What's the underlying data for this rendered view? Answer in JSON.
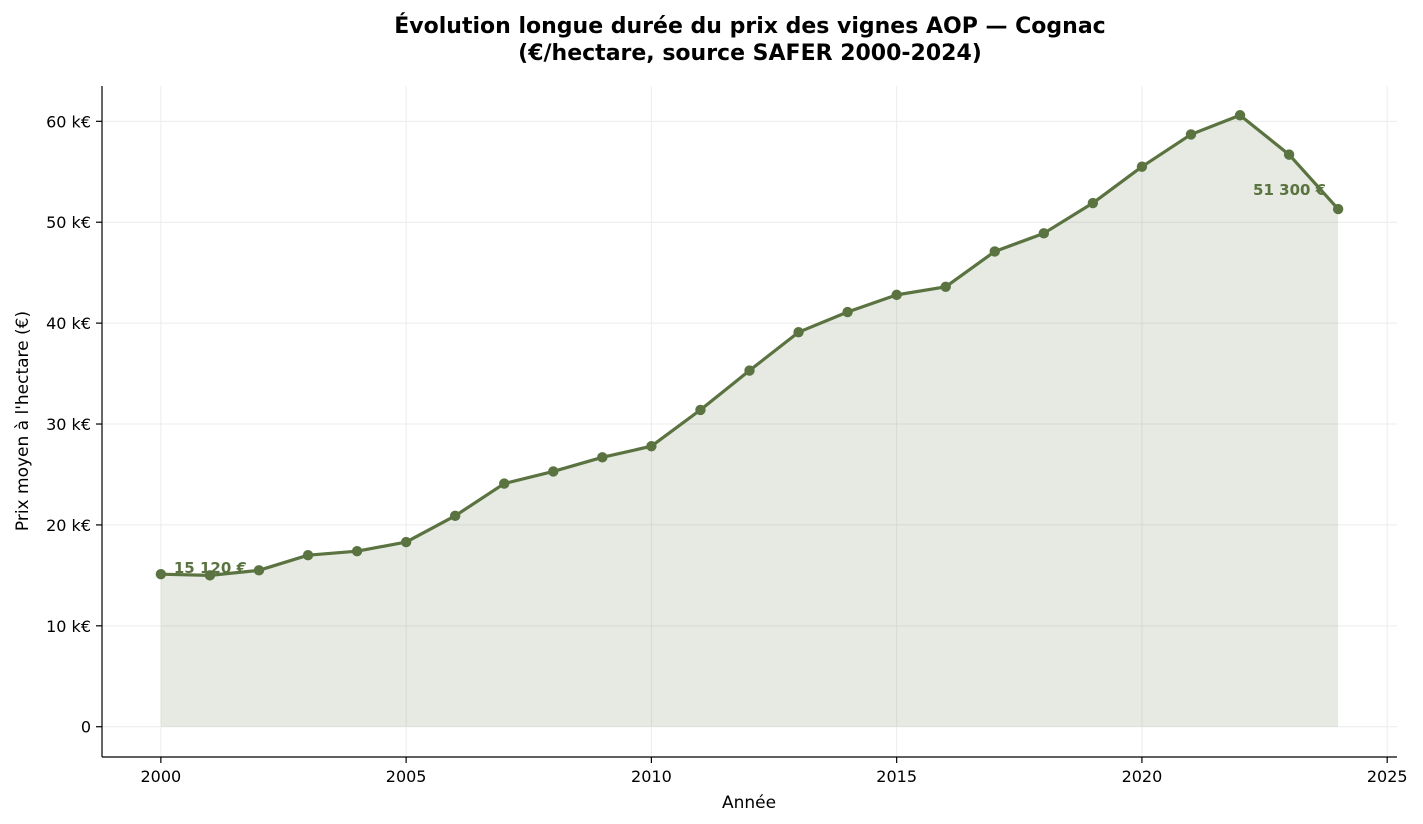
{
  "chart_data": {
    "type": "area",
    "title_line1": "Évolution longue durée du prix des vignes AOP — Cognac",
    "title_line2": "(€/hectare, source SAFER 2000-2024)",
    "xlabel": "Année",
    "ylabel": "Prix moyen à l'hectare (€)",
    "xlim": [
      1998.8,
      2025.2
    ],
    "ylim": [
      -3000,
      63500
    ],
    "x_ticks": [
      2000,
      2005,
      2010,
      2015,
      2020,
      2025
    ],
    "x_tick_labels": [
      "2000",
      "2005",
      "2010",
      "2015",
      "2020",
      "2025"
    ],
    "y_ticks": [
      0,
      10000,
      20000,
      30000,
      40000,
      50000,
      60000
    ],
    "y_tick_labels": [
      "0",
      "10 k€",
      "20 k€",
      "30 k€",
      "40 k€",
      "50 k€",
      "60 k€"
    ],
    "grid": true,
    "x": [
      2000,
      2001,
      2002,
      2003,
      2004,
      2005,
      2006,
      2007,
      2008,
      2009,
      2010,
      2011,
      2012,
      2013,
      2014,
      2015,
      2016,
      2017,
      2018,
      2019,
      2020,
      2021,
      2022,
      2023,
      2024
    ],
    "values": [
      15120,
      15000,
      15500,
      17000,
      17400,
      18300,
      20900,
      24100,
      25300,
      26700,
      27800,
      31400,
      35300,
      39100,
      41100,
      42800,
      43600,
      47100,
      48900,
      51900,
      55500,
      58700,
      60600,
      56700,
      51300
    ],
    "annotations": [
      {
        "text": "15 120 €",
        "x": 2000,
        "y": 15120
      },
      {
        "text": "51 300 €",
        "x": 2024,
        "y": 51300
      }
    ],
    "colors": {
      "line": "#5a7340",
      "fill": "#5a7340",
      "grid": "#ececec",
      "axis": "#000000"
    }
  }
}
